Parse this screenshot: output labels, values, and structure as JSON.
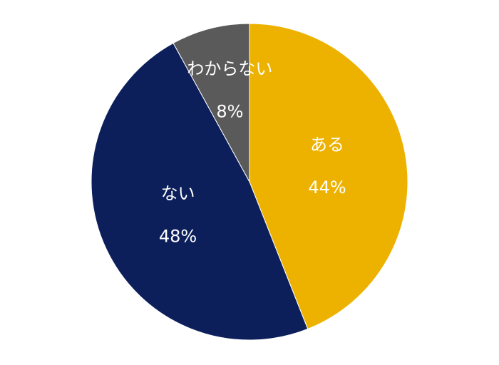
{
  "chart_data": {
    "type": "pie",
    "categories": [
      "ある",
      "ない",
      "わからない"
    ],
    "values": [
      44,
      48,
      8
    ],
    "value_labels": [
      "44%",
      "48%",
      "8%"
    ],
    "colors": [
      "#edb200",
      "#0c1f5b",
      "#5a5a5a"
    ]
  }
}
